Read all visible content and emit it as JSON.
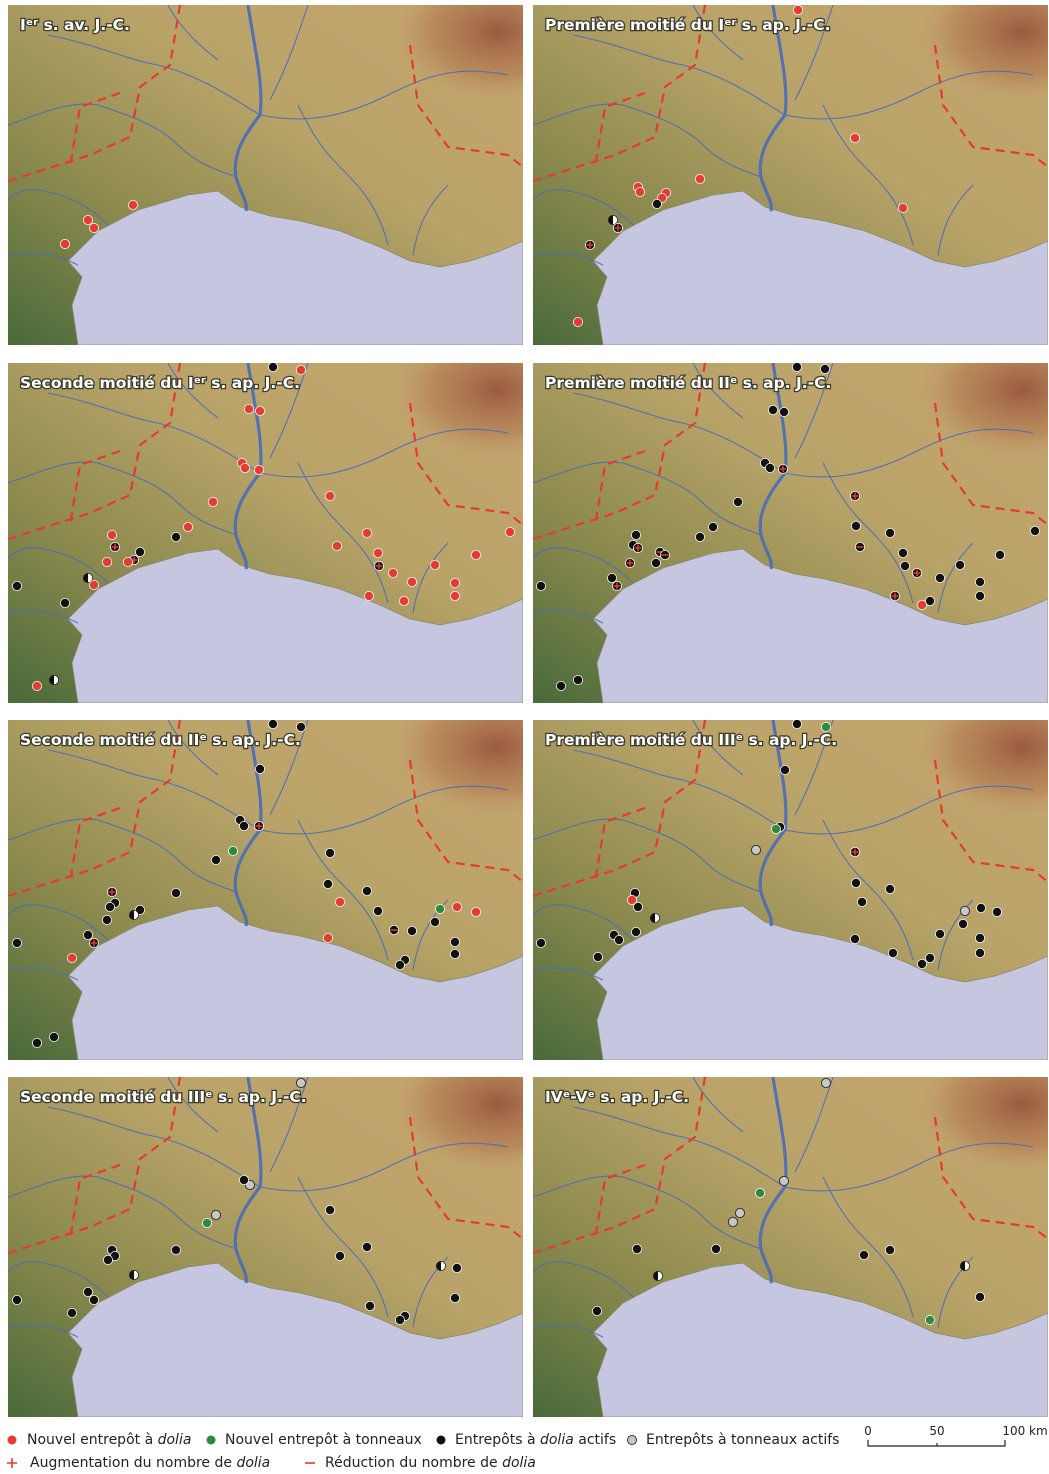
{
  "panels": [
    {
      "title": "Iᵉʳ s. av. J.-C."
    },
    {
      "title": "Première moitié du Iᵉʳ s. ap. J.-C."
    },
    {
      "title": "Seconde moitié du Iᵉʳ s. ap. J.-C."
    },
    {
      "title": "Première moitié du IIᵉ s. ap. J.-C."
    },
    {
      "title": "Seconde moitié du IIᵉ s. ap. J.-C."
    },
    {
      "title": "Première moitié du IIIᵉ s. ap. J.-C."
    },
    {
      "title": "Seconde moitié du IIIᵉ s. ap. J.-C."
    },
    {
      "title": "IVᵉ-Vᵉ s. ap. J.-C."
    }
  ],
  "legend": {
    "items": [
      {
        "text": "Nouvel entrepôt à ",
        "em": "dolia"
      },
      {
        "text": "Nouvel entrepôt à tonneaux"
      },
      {
        "text": "Entrepôts à ",
        "em": "dolia",
        "after": " actifs"
      },
      {
        "text": "Entrepôts à tonneaux actifs"
      },
      {
        "text": "Augmentation du nombre de ",
        "em": "dolia"
      },
      {
        "text": "Réduction du nombre de ",
        "em": "dolia"
      }
    ]
  },
  "scale": {
    "labels": [
      "0",
      "50",
      "100 km"
    ]
  }
}
